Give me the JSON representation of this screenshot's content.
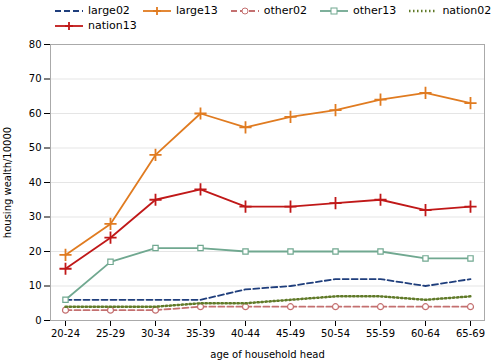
{
  "chart_data": {
    "type": "line",
    "xlabel": "age of household head",
    "ylabel": "housing wealth/10000",
    "categories": [
      "20-24",
      "25-29",
      "30-34",
      "35-39",
      "40-44",
      "45-49",
      "50-54",
      "55-59",
      "60-64",
      "65-69"
    ],
    "series": [
      {
        "name": "large02",
        "color": "#1f3e7c",
        "line_style": "dashed",
        "values": [
          6,
          6,
          6,
          6,
          9,
          10,
          12,
          12,
          10,
          12
        ]
      },
      {
        "name": "large13",
        "color": "#e07b20",
        "line_style": "solid",
        "marker": "plus",
        "values": [
          19,
          28,
          48,
          60,
          56,
          59,
          61,
          64,
          66,
          63
        ]
      },
      {
        "name": "other02",
        "color": "#c47070",
        "line_style": "dashed",
        "marker": "circle",
        "values": [
          3,
          3,
          3,
          4,
          4,
          4,
          4,
          4,
          4,
          4
        ]
      },
      {
        "name": "other13",
        "color": "#70a890",
        "line_style": "solid",
        "marker": "square",
        "values": [
          6,
          17,
          21,
          21,
          20,
          20,
          20,
          20,
          18,
          18
        ]
      },
      {
        "name": "nation02",
        "color": "#607a28",
        "line_style": "dotted",
        "values": [
          4,
          4,
          4,
          5,
          5,
          6,
          7,
          7,
          6,
          7
        ]
      },
      {
        "name": "nation13",
        "color": "#c01818",
        "line_style": "solid",
        "marker": "plus",
        "values": [
          15,
          24,
          35,
          38,
          33,
          33,
          34,
          35,
          32,
          33
        ]
      }
    ],
    "ylim": [
      0,
      80
    ],
    "yticks": [
      0,
      10,
      20,
      30,
      40,
      50,
      60,
      70,
      80
    ],
    "grid": true,
    "legend": "upper left"
  }
}
